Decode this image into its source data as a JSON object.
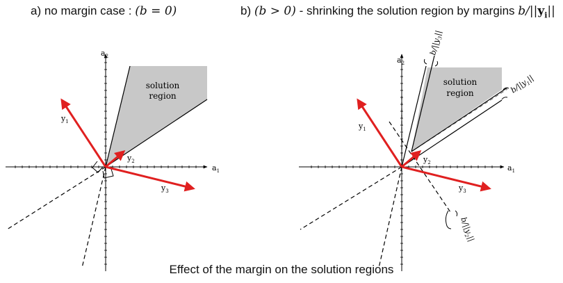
{
  "panel_a": {
    "title": "a) no margin case : ",
    "title_math": "(b = 0)",
    "axis_x": "a",
    "axis_x_sub": "1",
    "axis_y": "a",
    "axis_y_sub": "2",
    "region_label_1": "solution",
    "region_label_2": "region",
    "vectors": [
      {
        "name": "y",
        "sub": "1"
      },
      {
        "name": "y",
        "sub": "2"
      },
      {
        "name": "y",
        "sub": "3"
      }
    ]
  },
  "panel_b": {
    "title": "b) ",
    "title_math": "(b > 0)",
    "title_rest": " - shrinking the solution region by margins ",
    "title_margin_b": "b",
    "title_margin_slash": "/",
    "title_margin_norm_l": "||",
    "title_margin_y": "y",
    "title_margin_sub": "i",
    "title_margin_norm_r": "||",
    "axis_x": "a",
    "axis_x_sub": "1",
    "axis_y": "a",
    "axis_y_sub": "2",
    "region_label_1": "solution",
    "region_label_2": "region",
    "vectors": [
      {
        "name": "y",
        "sub": "1"
      },
      {
        "name": "y",
        "sub": "2"
      },
      {
        "name": "y",
        "sub": "3"
      }
    ],
    "margins": [
      {
        "text": "b/||y",
        "sub": "3",
        "end": "||"
      },
      {
        "text": "b/||y",
        "sub": "1",
        "end": "||"
      },
      {
        "text": "b/||y",
        "sub": "2",
        "end": "||"
      }
    ]
  },
  "caption": "Effect of the margin on the solution regions",
  "colors": {
    "vector": "#e02020",
    "region": "#c8c8c8",
    "line": "#000000"
  }
}
